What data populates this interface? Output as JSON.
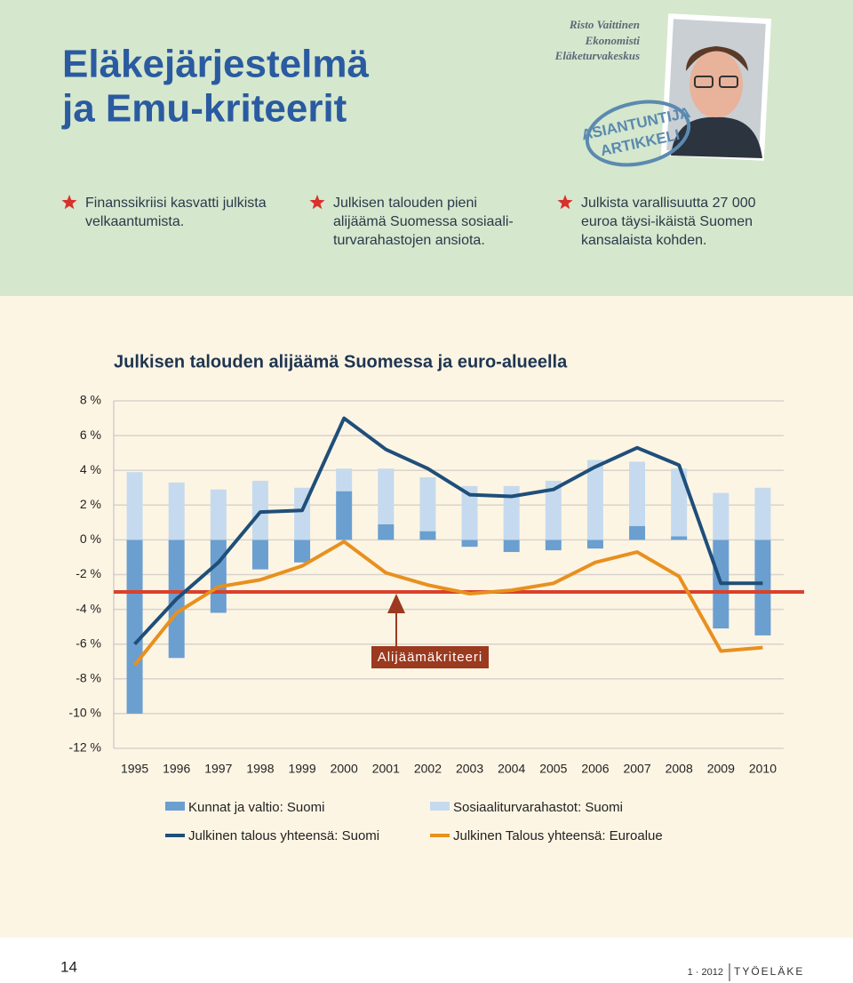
{
  "header": {
    "title": [
      "Eläkejärjestelmä",
      "ja Emu-kriteerit"
    ],
    "author": [
      "Risto Vaittinen",
      "Ekonomisti",
      "Eläketurvakeskus"
    ],
    "stamp": [
      "ASIANTUNTIJA",
      "ARTIKKELI"
    ]
  },
  "bullets": [
    {
      "lines": [
        "Finanssikriisi kasvatti julkista",
        "velkaantumista."
      ]
    },
    {
      "lines": [
        "Julkisen talouden pieni",
        "alijäämä Suomessa sosiaali-",
        "turvarahastojen ansiota."
      ]
    },
    {
      "lines": [
        "Julkista varallisuutta 27 000",
        "euroa täysi-ikäistä Suomen",
        "kansalaista kohden."
      ]
    }
  ],
  "chart_data": {
    "type": "bar_line",
    "title": "Julkisen talouden alijäämä Suomessa ja euro-alueella",
    "categories": [
      "1995",
      "1996",
      "1997",
      "1998",
      "1999",
      "2000",
      "2001",
      "2002",
      "2003",
      "2004",
      "2005",
      "2006",
      "2007",
      "2008",
      "2009",
      "2010"
    ],
    "series": [
      {
        "name": "Kunnat ja valtio: Suomi",
        "kind": "bar",
        "color": "#6a9fd0",
        "values": [
          -10.0,
          -6.8,
          -4.2,
          -1.7,
          -1.3,
          2.8,
          0.9,
          0.5,
          -0.4,
          -0.7,
          -0.6,
          -0.5,
          0.8,
          0.2,
          -5.1,
          -5.5
        ]
      },
      {
        "name": "Sosiaaliturvarahastot: Suomi",
        "kind": "bar",
        "color": "#c5daee",
        "values": [
          3.9,
          3.3,
          2.9,
          3.4,
          3.0,
          1.3,
          3.2,
          3.1,
          3.1,
          3.1,
          3.4,
          4.6,
          3.7,
          3.9,
          2.7,
          3.0
        ]
      },
      {
        "name": "Julkinen talous yhteensä: Suomi",
        "kind": "line",
        "color": "#1f4e79",
        "values": [
          -6.0,
          -3.4,
          -1.3,
          1.6,
          1.7,
          7.0,
          5.2,
          4.1,
          2.6,
          2.5,
          2.9,
          4.2,
          5.3,
          4.3,
          -2.5,
          -2.5
        ]
      },
      {
        "name": "Julkinen Talous yhteensä: Euroalue",
        "kind": "line",
        "color": "#e8901e",
        "values": [
          -7.2,
          -4.2,
          -2.7,
          -2.3,
          -1.5,
          -0.1,
          -1.9,
          -2.6,
          -3.1,
          -2.9,
          -2.5,
          -1.3,
          -0.7,
          -2.1,
          -6.4,
          -6.2
        ]
      }
    ],
    "reference_line": {
      "value": -3,
      "label": "Alijäämäkriteeri",
      "color": "#d9412b"
    },
    "ylim": [
      -12,
      8
    ],
    "yticks": [
      {
        "value": 8,
        "label": "8 %"
      },
      {
        "value": 6,
        "label": "6 %"
      },
      {
        "value": 4,
        "label": "4 %"
      },
      {
        "value": 2,
        "label": "2 %"
      },
      {
        "value": 0,
        "label": "0 %"
      },
      {
        "value": -2,
        "label": "-2 %"
      },
      {
        "value": -4,
        "label": "-4 %"
      },
      {
        "value": -6,
        "label": "-6 %"
      },
      {
        "value": -8,
        "label": "-8 %"
      },
      {
        "value": -10,
        "label": "-10 %"
      },
      {
        "value": -12,
        "label": "-12 %"
      }
    ],
    "grid": true
  },
  "footer": {
    "page": "14",
    "issue": "1 · 2012",
    "magazine": "TYÖELÄKE"
  }
}
